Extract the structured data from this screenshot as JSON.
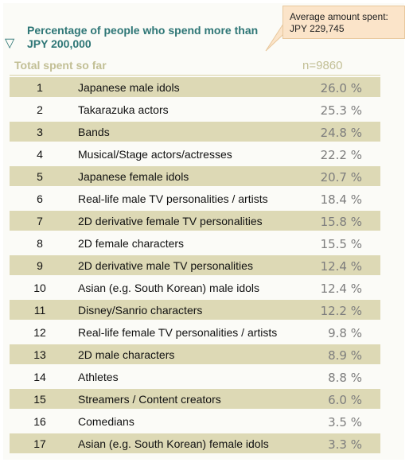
{
  "callout": {
    "line1": "Average amount spent:",
    "line2": "JPY 229,745"
  },
  "header": {
    "triangle": "▽",
    "title": "Percentage of people who spend more than JPY 200,000"
  },
  "total": {
    "label": "Total spent so far",
    "n": "n=9860"
  },
  "colors": {
    "band": "#ddd9b5",
    "plain": "#fbfbf7",
    "title": "#2e7676",
    "callout": "#fbe4c9",
    "muted": "#c2bf95"
  },
  "chart_data": {
    "type": "table",
    "title": "Percentage of people who spend more than JPY 200,000",
    "unit": "%",
    "ranks": [
      1,
      2,
      3,
      4,
      5,
      6,
      7,
      8,
      9,
      10,
      11,
      12,
      13,
      14,
      15,
      16,
      17
    ],
    "categories": [
      "Japanese male idols",
      "Takarazuka actors",
      "Bands",
      "Musical/Stage actors/actresses",
      "Japanese female idols",
      "Real-life male TV personalities / artists",
      "2D derivative female TV personalities",
      "2D female characters",
      "2D derivative male TV personalities",
      "Asian (e.g. South Korean) male idols",
      "Disney/Sanrio characters",
      "Real-life female TV personalities / artists",
      "2D male characters",
      "Athletes",
      "Streamers / Content creators",
      "Comedians",
      "Asian (e.g. South Korean) female idols"
    ],
    "values": [
      26.0,
      25.3,
      24.8,
      22.2,
      20.7,
      18.4,
      15.8,
      15.5,
      12.4,
      12.4,
      12.2,
      9.8,
      8.9,
      8.8,
      6.0,
      3.5,
      3.3
    ],
    "n": 9860
  }
}
